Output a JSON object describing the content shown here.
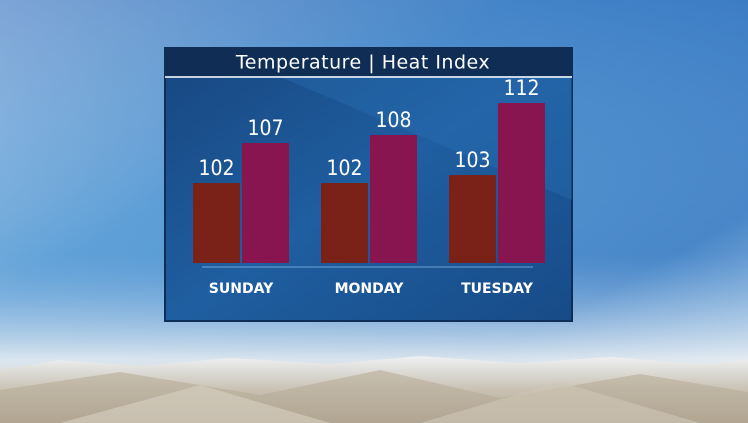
{
  "chart_data": {
    "type": "bar",
    "title": "Temperature | Heat Index",
    "categories": [
      "SUNDAY",
      "MONDAY",
      "TUESDAY"
    ],
    "series": [
      {
        "color": "#7a2118",
        "values": [
          102,
          102,
          103
        ]
      },
      {
        "color": "#88154f",
        "values": [
          107,
          108,
          112
        ]
      }
    ],
    "ylim": [
      92,
      113
    ]
  }
}
